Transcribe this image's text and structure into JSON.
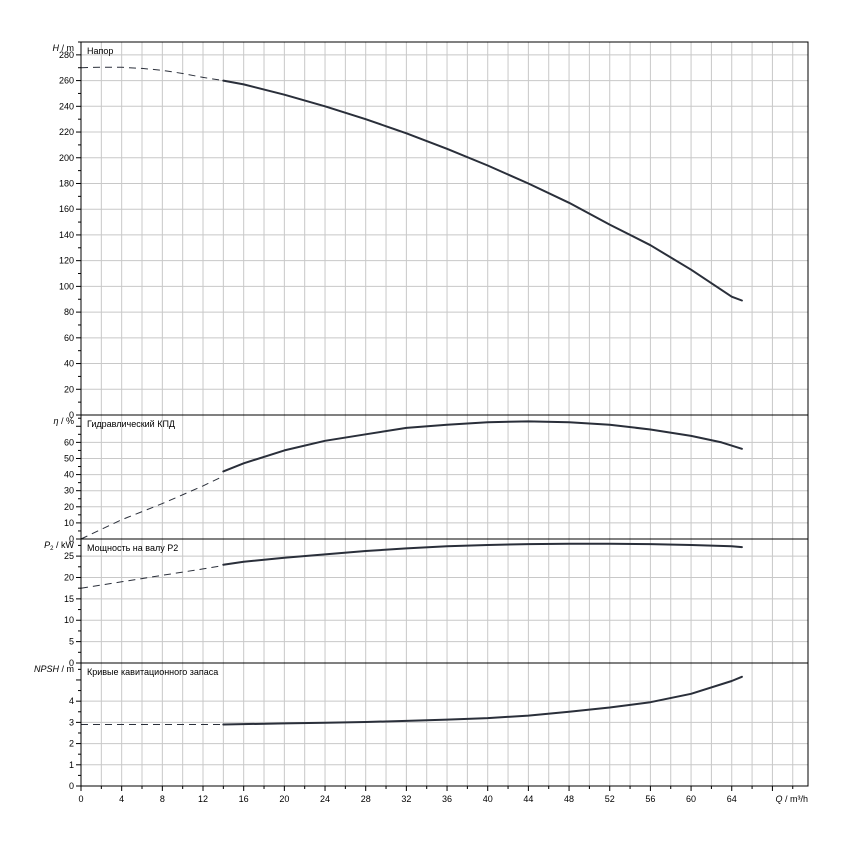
{
  "chart_data": [
    {
      "type": "line",
      "title": "Напор",
      "ylabel_symbol": "H",
      "ylabel_sub": "",
      "ylabel_unit": "/ m",
      "ylim": [
        0,
        290
      ],
      "yticks": [
        0,
        20,
        40,
        60,
        80,
        100,
        120,
        140,
        160,
        180,
        200,
        220,
        240,
        260,
        280
      ],
      "dashed": [
        [
          0,
          270
        ],
        [
          2,
          270.4
        ],
        [
          4,
          270.3
        ],
        [
          6,
          269.5
        ],
        [
          8,
          268
        ],
        [
          10,
          265.5
        ],
        [
          12,
          262.5
        ],
        [
          14,
          260
        ]
      ],
      "solid": [
        [
          14,
          260
        ],
        [
          16,
          257
        ],
        [
          20,
          249
        ],
        [
          24,
          240
        ],
        [
          28,
          230
        ],
        [
          32,
          219
        ],
        [
          36,
          207
        ],
        [
          40,
          194
        ],
        [
          44,
          180
        ],
        [
          48,
          165
        ],
        [
          52,
          148
        ],
        [
          56,
          132
        ],
        [
          60,
          113
        ],
        [
          64,
          92
        ],
        [
          65,
          89
        ]
      ],
      "grid": true
    },
    {
      "type": "line",
      "title": "Гидравлический КПД",
      "ylabel_symbol": "η",
      "ylabel_sub": "",
      "ylabel_unit": "/ %",
      "ylim": [
        0,
        77
      ],
      "yticks": [
        0,
        10,
        20,
        30,
        40,
        50,
        60
      ],
      "dashed": [
        [
          0,
          0
        ],
        [
          4,
          12
        ],
        [
          8,
          22
        ],
        [
          12,
          33
        ],
        [
          14,
          39
        ]
      ],
      "solid": [
        [
          14,
          42
        ],
        [
          16,
          47
        ],
        [
          20,
          55
        ],
        [
          24,
          61
        ],
        [
          28,
          65
        ],
        [
          32,
          69
        ],
        [
          36,
          71
        ],
        [
          40,
          72.5
        ],
        [
          44,
          73
        ],
        [
          48,
          72.5
        ],
        [
          52,
          71
        ],
        [
          56,
          68
        ],
        [
          60,
          64
        ],
        [
          63,
          60
        ],
        [
          65,
          56
        ]
      ],
      "grid": true
    },
    {
      "type": "line",
      "title": "Мощность на валу P2",
      "ylabel_symbol": "P",
      "ylabel_sub": "2",
      "ylabel_unit": "/ kW",
      "ylim": [
        0,
        29
      ],
      "yticks": [
        0,
        5,
        10,
        15,
        20,
        25
      ],
      "dashed": [
        [
          0,
          17.5
        ],
        [
          4,
          19
        ],
        [
          8,
          20.5
        ],
        [
          12,
          22
        ],
        [
          14,
          22.8
        ]
      ],
      "solid": [
        [
          14,
          23
        ],
        [
          16,
          23.7
        ],
        [
          20,
          24.6
        ],
        [
          24,
          25.4
        ],
        [
          28,
          26.2
        ],
        [
          32,
          26.8
        ],
        [
          36,
          27.3
        ],
        [
          40,
          27.6
        ],
        [
          44,
          27.8
        ],
        [
          48,
          27.9
        ],
        [
          52,
          27.9
        ],
        [
          56,
          27.8
        ],
        [
          60,
          27.6
        ],
        [
          64,
          27.3
        ],
        [
          65,
          27.1
        ]
      ],
      "grid": true
    },
    {
      "type": "line",
      "title": "Кривые кавитационного запаса",
      "ylabel_symbol": "NPSH",
      "ylabel_sub": "",
      "ylabel_unit": "/ m",
      "ylim": [
        0,
        5.8
      ],
      "yticks": [
        0,
        1,
        2,
        3,
        4
      ],
      "dashed": [
        [
          0,
          2.9
        ],
        [
          14,
          2.9
        ]
      ],
      "solid": [
        [
          14,
          2.9
        ],
        [
          20,
          2.95
        ],
        [
          24,
          2.98
        ],
        [
          28,
          3.02
        ],
        [
          32,
          3.07
        ],
        [
          36,
          3.13
        ],
        [
          40,
          3.2
        ],
        [
          44,
          3.32
        ],
        [
          48,
          3.5
        ],
        [
          52,
          3.7
        ],
        [
          56,
          3.95
        ],
        [
          60,
          4.35
        ],
        [
          64,
          4.95
        ],
        [
          65,
          5.15
        ]
      ],
      "grid": true
    }
  ],
  "x_axis": {
    "label_symbol": "Q",
    "label_unit": "/ m³/h",
    "xlim": [
      0,
      71.5
    ],
    "ticks": [
      0,
      4,
      8,
      12,
      16,
      20,
      24,
      28,
      32,
      36,
      40,
      44,
      48,
      52,
      56,
      60,
      64
    ]
  }
}
